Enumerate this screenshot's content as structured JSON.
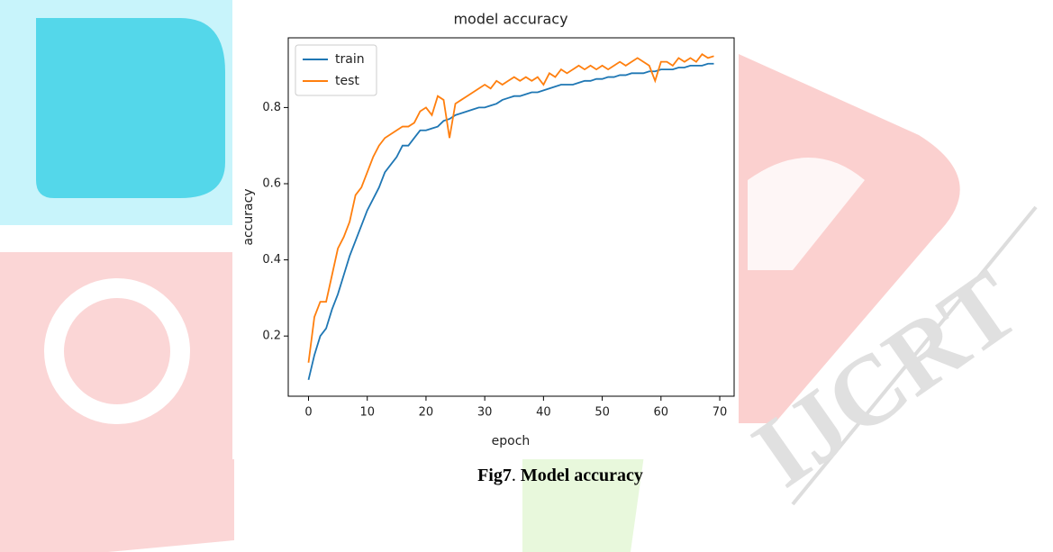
{
  "chart_data": {
    "type": "line",
    "title": "model accuracy",
    "x_label": "epoch",
    "y_label": "accuracy",
    "x": [
      0,
      1,
      2,
      3,
      4,
      5,
      6,
      7,
      8,
      9,
      10,
      11,
      12,
      13,
      14,
      15,
      16,
      17,
      18,
      19,
      20,
      21,
      22,
      23,
      24,
      25,
      26,
      27,
      28,
      29,
      30,
      31,
      32,
      33,
      34,
      35,
      36,
      37,
      38,
      39,
      40,
      41,
      42,
      43,
      44,
      45,
      46,
      47,
      48,
      49,
      50,
      51,
      52,
      53,
      54,
      55,
      56,
      57,
      58,
      59,
      60,
      61,
      62,
      63,
      64,
      65,
      66,
      67,
      68,
      69
    ],
    "series": [
      {
        "name": "train",
        "color": "#1f77b4",
        "values": [
          0.085,
          0.15,
          0.2,
          0.22,
          0.27,
          0.31,
          0.36,
          0.41,
          0.45,
          0.49,
          0.53,
          0.56,
          0.59,
          0.63,
          0.65,
          0.67,
          0.7,
          0.7,
          0.72,
          0.74,
          0.74,
          0.745,
          0.75,
          0.765,
          0.77,
          0.78,
          0.785,
          0.79,
          0.795,
          0.8,
          0.8,
          0.805,
          0.81,
          0.82,
          0.825,
          0.83,
          0.83,
          0.835,
          0.84,
          0.84,
          0.845,
          0.85,
          0.855,
          0.86,
          0.86,
          0.86,
          0.865,
          0.87,
          0.87,
          0.875,
          0.875,
          0.88,
          0.88,
          0.885,
          0.885,
          0.89,
          0.89,
          0.89,
          0.895,
          0.895,
          0.9,
          0.9,
          0.9,
          0.905,
          0.905,
          0.91,
          0.91,
          0.91,
          0.915,
          0.915
        ]
      },
      {
        "name": "test",
        "color": "#ff7f0e",
        "values": [
          0.13,
          0.25,
          0.29,
          0.29,
          0.36,
          0.43,
          0.46,
          0.5,
          0.57,
          0.59,
          0.63,
          0.67,
          0.7,
          0.72,
          0.73,
          0.74,
          0.75,
          0.75,
          0.76,
          0.79,
          0.8,
          0.78,
          0.83,
          0.82,
          0.72,
          0.81,
          0.82,
          0.83,
          0.84,
          0.85,
          0.86,
          0.85,
          0.87,
          0.86,
          0.87,
          0.88,
          0.87,
          0.88,
          0.87,
          0.88,
          0.86,
          0.89,
          0.88,
          0.9,
          0.89,
          0.9,
          0.91,
          0.9,
          0.91,
          0.9,
          0.91,
          0.9,
          0.91,
          0.92,
          0.91,
          0.92,
          0.93,
          0.92,
          0.91,
          0.87,
          0.92,
          0.92,
          0.91,
          0.93,
          0.92,
          0.93,
          0.92,
          0.94,
          0.93,
          0.935
        ]
      }
    ],
    "xlim": [
      -3.45,
      72.45
    ],
    "ylim": [
      0.042,
      0.983
    ],
    "xticks": [
      0,
      10,
      20,
      30,
      40,
      50,
      60,
      70
    ],
    "yticks": [
      0.2,
      0.4,
      0.6,
      0.8
    ],
    "legend": "upper left"
  },
  "caption": {
    "label": "Fig7",
    "sep": ".",
    "text": "Model accuracy"
  },
  "watermark": "IJCRT"
}
